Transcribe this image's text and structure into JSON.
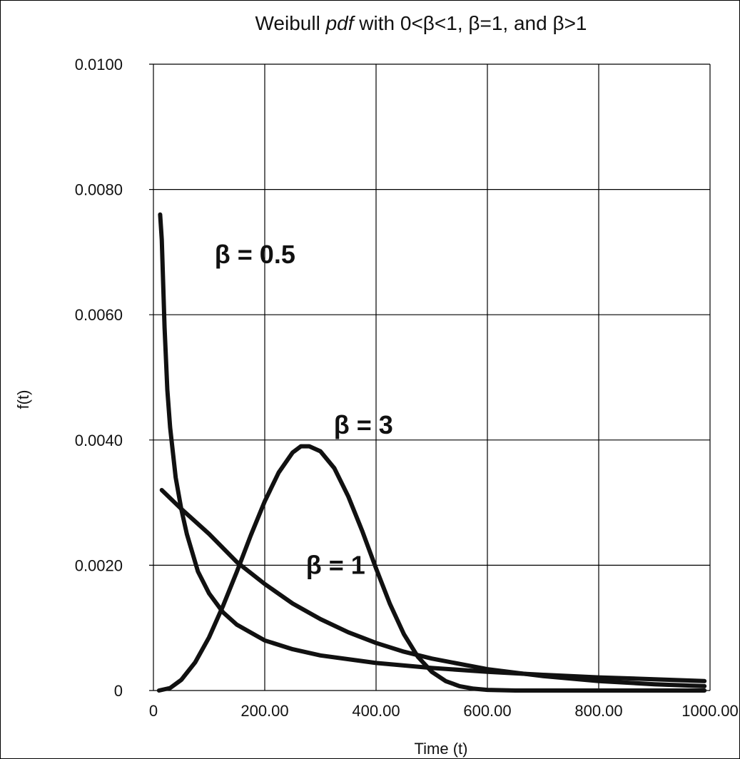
{
  "chart_data": {
    "type": "line",
    "title_parts": {
      "before": "Weibull ",
      "italic": "pdf",
      "after": " with 0<β<1, β=1, and β>1"
    },
    "xlabel": "Time (t)",
    "ylabel": "f(t)",
    "xlim": [
      0,
      1000
    ],
    "ylim": [
      0,
      0.01
    ],
    "x_ticks": [
      0,
      200,
      400,
      600,
      800,
      1000
    ],
    "x_tick_labels": [
      "0",
      "200.00",
      "400.00",
      "600.00",
      "800.00",
      "1000.00"
    ],
    "y_ticks": [
      0,
      0.002,
      0.004,
      0.006,
      0.008,
      0.01
    ],
    "y_tick_labels": [
      "0",
      "0.0020",
      "0.0040",
      "0.0060",
      "0.0080",
      "0.0100"
    ],
    "grid": true,
    "line_color": "#111111",
    "series": [
      {
        "label": "β = 0.5",
        "x": [
          12,
          15,
          20,
          25,
          30,
          40,
          50,
          60,
          80,
          100,
          125,
          150,
          200,
          250,
          300,
          400,
          500,
          600,
          700,
          800,
          900,
          990
        ],
        "y": [
          0.0076,
          0.0072,
          0.0058,
          0.0048,
          0.0042,
          0.0034,
          0.0029,
          0.0025,
          0.0019,
          0.00155,
          0.00125,
          0.00105,
          0.0008,
          0.00066,
          0.00056,
          0.00044,
          0.00036,
          0.0003,
          0.00025,
          0.00021,
          0.00018,
          0.00015
        ]
      },
      {
        "label": "β = 1",
        "x": [
          15,
          50,
          100,
          150,
          200,
          250,
          300,
          350,
          400,
          450,
          500,
          600,
          700,
          800,
          900,
          990
        ],
        "y": [
          0.0032,
          0.0029,
          0.0025,
          0.00205,
          0.0017,
          0.00139,
          0.00114,
          0.00093,
          0.00076,
          0.00062,
          0.00051,
          0.00034,
          0.00023,
          0.00015,
          0.0001,
          7e-05
        ]
      },
      {
        "label": "β = 3",
        "x": [
          10,
          30,
          50,
          75,
          100,
          125,
          150,
          175,
          200,
          225,
          250,
          265,
          280,
          300,
          325,
          350,
          375,
          400,
          425,
          450,
          475,
          500,
          525,
          550,
          575,
          600,
          650,
          700,
          800,
          900,
          990
        ],
        "y": [
          0,
          4e-05,
          0.00017,
          0.00045,
          0.00085,
          0.00135,
          0.0019,
          0.00248,
          0.00302,
          0.00348,
          0.0038,
          0.0039,
          0.0039,
          0.00382,
          0.00355,
          0.0031,
          0.00255,
          0.00195,
          0.00138,
          0.0009,
          0.00054,
          0.0003,
          0.00015,
          7e-05,
          3e-05,
          1e-05,
          0,
          0,
          0,
          0,
          0
        ]
      }
    ],
    "annotations": [
      {
        "text": "β = 0.5",
        "x": 110,
        "y": 0.00682
      },
      {
        "text": "β = 3",
        "x": 324,
        "y": 0.0041
      },
      {
        "text": "β = 1",
        "x": 274,
        "y": 0.00186
      }
    ]
  }
}
